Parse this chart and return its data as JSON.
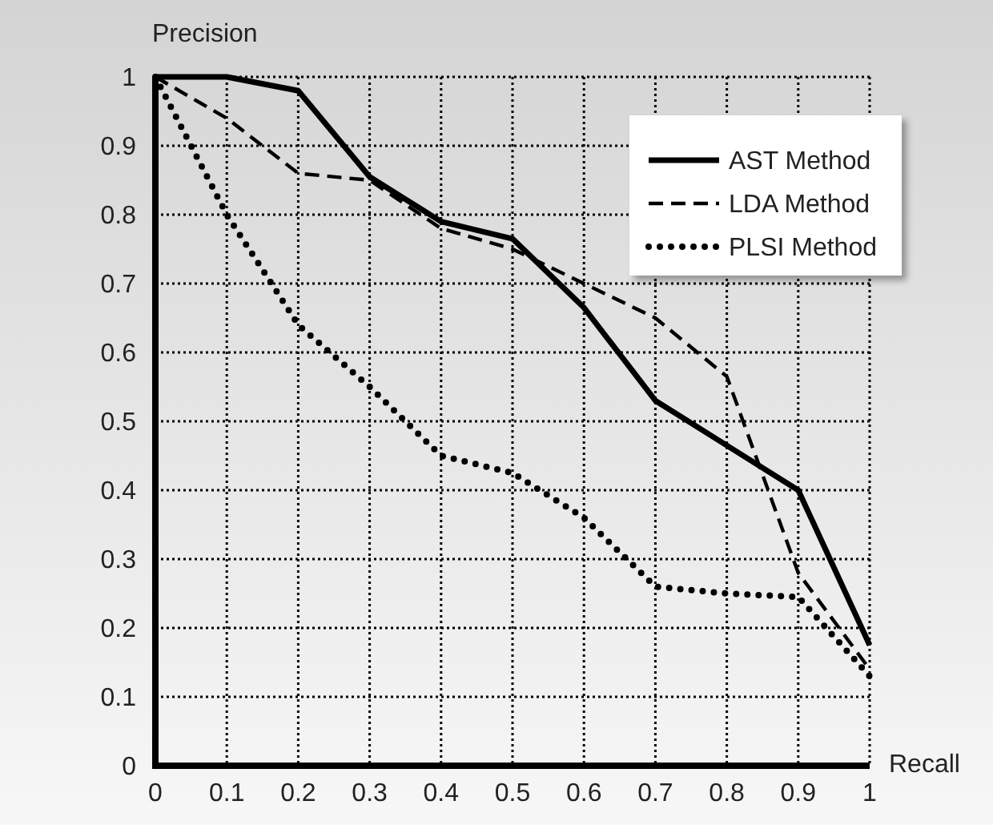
{
  "chart_data": {
    "type": "line",
    "xlabel": "Recall",
    "ylabel": "Precision",
    "x": [
      0,
      0.1,
      0.2,
      0.3,
      0.4,
      0.5,
      0.6,
      0.7,
      0.8,
      0.9,
      1
    ],
    "series": [
      {
        "name": "AST Method",
        "color": "#000000",
        "line_style": "solid",
        "values": [
          1,
          1,
          0.98,
          0.855,
          0.79,
          0.765,
          0.665,
          0.53,
          0.465,
          0.4,
          0.175
        ]
      },
      {
        "name": "LDA Method",
        "color": "#000000",
        "line_style": "dashed",
        "values": [
          1,
          0.94,
          0.86,
          0.85,
          0.78,
          0.75,
          0.7,
          0.65,
          0.565,
          0.28,
          0.14
        ]
      },
      {
        "name": "PLSI Method",
        "color": "#000000",
        "line_style": "dotted",
        "values": [
          1,
          0.8,
          0.64,
          0.55,
          0.45,
          0.425,
          0.36,
          0.26,
          0.25,
          0.245,
          0.13
        ]
      }
    ],
    "xlim": [
      0,
      1
    ],
    "xticks": [
      0,
      0.1,
      0.2,
      0.3,
      0.4,
      0.5,
      0.6,
      0.7,
      0.8,
      0.9,
      1
    ],
    "ylim": [
      0,
      1
    ],
    "yticks": [
      0,
      0.1,
      0.2,
      0.3,
      0.4,
      0.5,
      0.6,
      0.7,
      0.8,
      0.9,
      1
    ],
    "grid": true,
    "legend": "top right",
    "marker": "none"
  }
}
